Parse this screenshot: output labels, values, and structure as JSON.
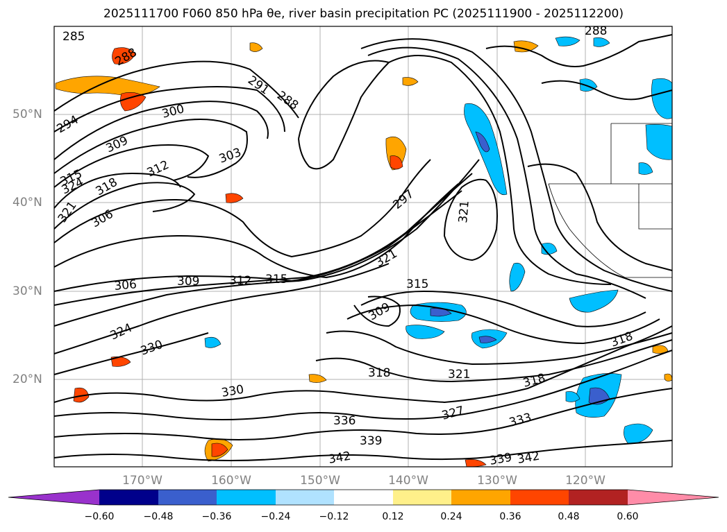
{
  "title": "2025111700 F060 850 hPa θe, river basin precipitation PC (2025111900 - 2025112200)",
  "latitude_labels": [
    "50°N",
    "40°N",
    "30°N",
    "20°N"
  ],
  "longitude_labels": [
    "170°W",
    "160°W",
    "150°W",
    "140°W",
    "130°W",
    "120°W"
  ],
  "contour_labels": [
    "285",
    "288",
    "288",
    "291",
    "288",
    "294",
    "300",
    "303",
    "309",
    "312",
    "315",
    "324",
    "318",
    "321",
    "306",
    "297",
    "321",
    "321",
    "306",
    "309",
    "312",
    "315",
    "315",
    "309",
    "324",
    "330",
    "318",
    "321",
    "318",
    "318",
    "330",
    "336",
    "327",
    "333",
    "339",
    "342",
    "339",
    "342"
  ],
  "colorbar": {
    "ticks": [
      "−0.60",
      "−0.48",
      "−0.36",
      "−0.24",
      "−0.12",
      "0.12",
      "0.24",
      "0.36",
      "0.48",
      "0.60"
    ],
    "colors": [
      "#9932cc",
      "#00008b",
      "#3a5fcd",
      "#00bfff",
      "#b0e2ff",
      "#ffffff",
      "#fff08a",
      "#ffa500",
      "#ff4500",
      "#b22222",
      "#ff8ca8"
    ]
  }
}
